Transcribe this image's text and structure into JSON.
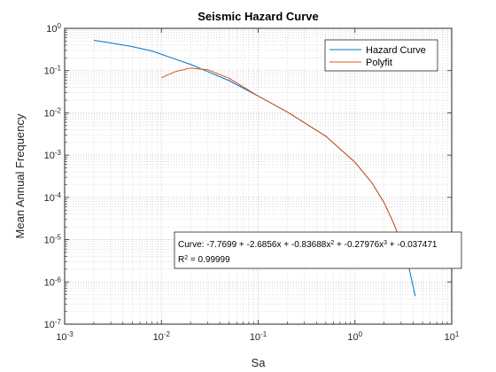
{
  "chart_data": {
    "type": "line",
    "title": "Seismic Hazard Curve",
    "xlabel": "Sa",
    "ylabel": "Mean Annual Frequency",
    "xscale": "log",
    "yscale": "log",
    "xlim": [
      0.001,
      10
    ],
    "ylim": [
      1e-07,
      1
    ],
    "x_ticks": [
      {
        "base": "10",
        "exp": "-3",
        "value": 0.001
      },
      {
        "base": "10",
        "exp": "-2",
        "value": 0.01
      },
      {
        "base": "10",
        "exp": "-1",
        "value": 0.1
      },
      {
        "base": "10",
        "exp": "0",
        "value": 1
      },
      {
        "base": "10",
        "exp": "1",
        "value": 10
      }
    ],
    "y_ticks": [
      {
        "base": "10",
        "exp": "0",
        "value": 1
      },
      {
        "base": "10",
        "exp": "-1",
        "value": 0.1
      },
      {
        "base": "10",
        "exp": "-2",
        "value": 0.01
      },
      {
        "base": "10",
        "exp": "-3",
        "value": 0.001
      },
      {
        "base": "10",
        "exp": "-4",
        "value": 0.0001
      },
      {
        "base": "10",
        "exp": "-5",
        "value": 1e-05
      },
      {
        "base": "10",
        "exp": "-6",
        "value": 1e-06
      },
      {
        "base": "10",
        "exp": "-7",
        "value": 1e-07
      }
    ],
    "grid": "major and minor",
    "legend_position": "top-right",
    "series": [
      {
        "name": "Hazard Curve",
        "color": "#0072BD",
        "x": [
          0.002,
          0.003,
          0.005,
          0.008,
          0.012,
          0.02,
          0.03,
          0.05,
          0.1,
          0.2,
          0.5,
          1,
          1.5,
          2,
          2.5,
          3,
          3.5,
          4.2
        ],
        "y": [
          0.52,
          0.45,
          0.37,
          0.29,
          0.21,
          0.14,
          0.095,
          0.058,
          0.025,
          0.0105,
          0.0028,
          0.00068,
          0.00022,
          7.5e-05,
          2.5e-05,
          8.5e-06,
          3e-06,
          4.6e-07
        ]
      },
      {
        "name": "Polyfit",
        "color": "#D95319",
        "x": [
          0.01,
          0.014,
          0.02,
          0.03,
          0.05,
          0.1,
          0.2,
          0.5,
          1,
          1.5,
          2,
          2.5,
          3
        ],
        "y": [
          0.068,
          0.095,
          0.115,
          0.105,
          0.066,
          0.025,
          0.0105,
          0.0028,
          0.00068,
          0.00022,
          7.5e-05,
          2.5e-05,
          8.5e-06
        ]
      }
    ],
    "annotation": {
      "curve_label": "Curve: ",
      "terms": [
        {
          "text": "-7.7699 + -2.6856x + -0.83688x",
          "sup": ""
        },
        {
          "text": "",
          "sup": "2"
        },
        {
          "text": " + -0.27976x",
          "sup": "3"
        },
        {
          "text": " + -0.037471",
          "sup": ""
        }
      ],
      "r2_label": "R",
      "r2_sup": "2",
      "r2_value": " = 0.99999"
    }
  }
}
